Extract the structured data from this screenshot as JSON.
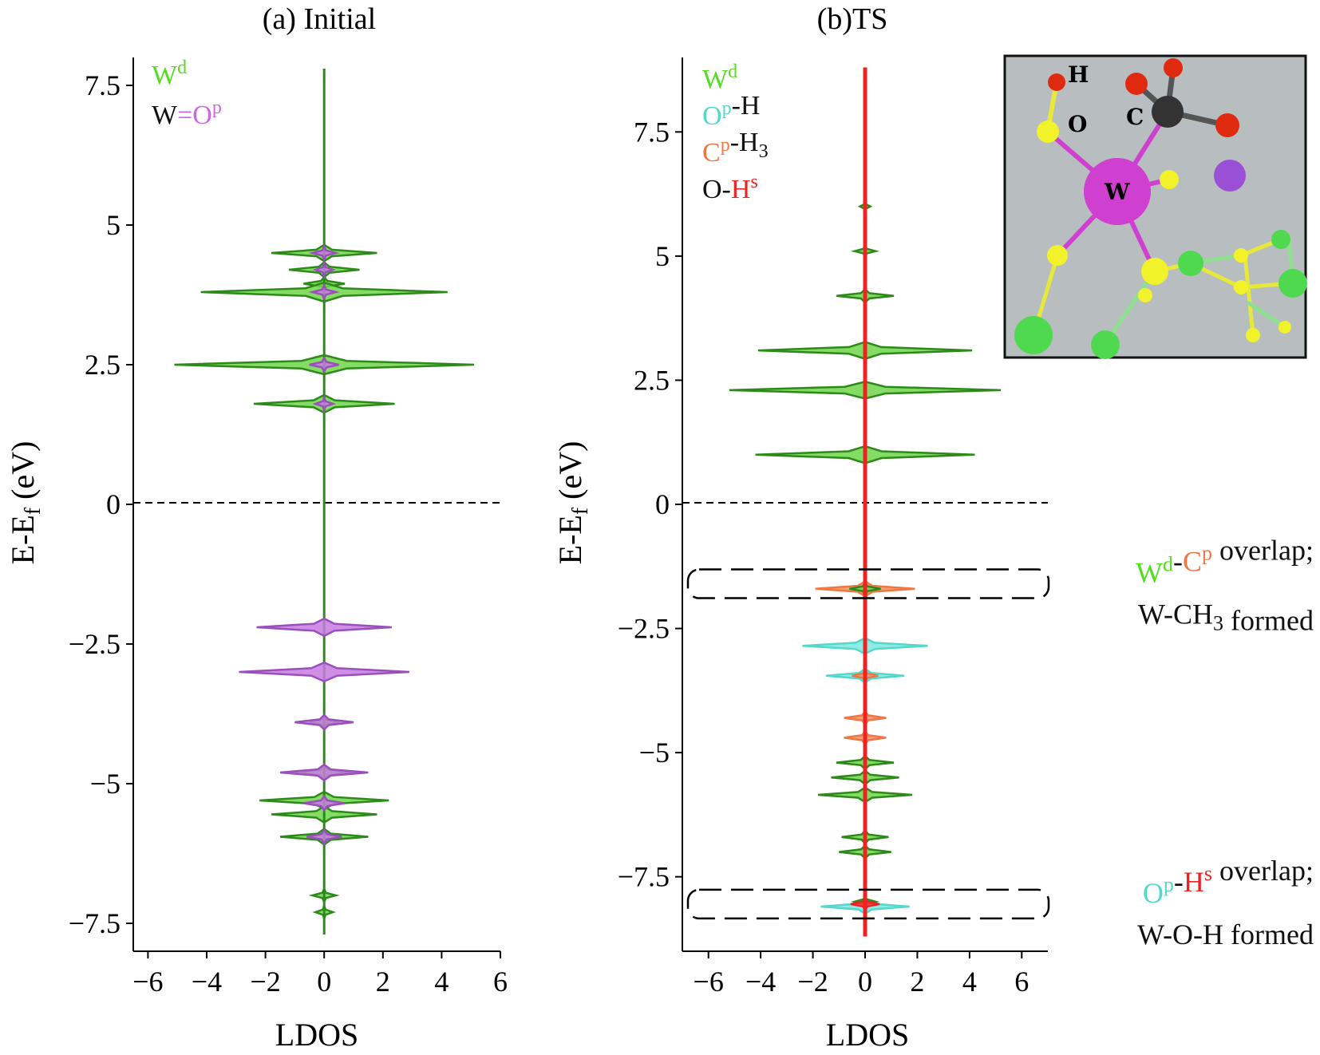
{
  "chart_data": [
    {
      "type": "area",
      "title": "(a) Initial",
      "xlabel": "LDOS",
      "ylabel": "E-E_f (eV)",
      "ylabel_main": "E-E",
      "ylabel_sub": "f",
      "ylabel_unit": " (eV)",
      "xlim": [
        -6.5,
        6
      ],
      "ylim": [
        -8,
        8
      ],
      "xticks": [
        -6,
        -4,
        -2,
        0,
        2,
        4,
        6
      ],
      "xtick_labels": [
        "−6",
        "−4",
        "−2",
        "0",
        "2",
        "4",
        "6"
      ],
      "yticks": [
        7.5,
        5,
        2.5,
        0,
        -2.5,
        -5,
        -7.5
      ],
      "ytick_labels": [
        "7.5",
        "5",
        "2.5",
        "0",
        "−2.5",
        "−5",
        "−7.5"
      ],
      "fermi_level": 0,
      "legend": [
        {
          "parts": [
            {
              "t": "W",
              "c": "#55dd22"
            },
            {
              "t": "d",
              "c": "#55dd22",
              "sup": true
            }
          ]
        },
        {
          "parts": [
            {
              "t": "W",
              "c": "#111111"
            },
            {
              "t": "=O",
              "c": "#cc66e6"
            },
            {
              "t": "p",
              "c": "#cc66e6",
              "sup": true
            }
          ]
        }
      ],
      "series": [
        {
          "name": "W^d",
          "color": "#2d8a1a",
          "fill": "#6fd64a",
          "peaks": [
            [
              4.5,
              1.8
            ],
            [
              4.2,
              1.2
            ],
            [
              3.95,
              0.7
            ],
            [
              3.8,
              4.2
            ],
            [
              2.5,
              5.1
            ],
            [
              1.8,
              2.4
            ],
            [
              -5.3,
              2.2
            ],
            [
              -5.55,
              1.8
            ],
            [
              -5.95,
              1.5
            ],
            [
              -4.8,
              1.0
            ],
            [
              -3.9,
              0.5
            ],
            [
              -7.0,
              0.4
            ],
            [
              -7.3,
              0.3
            ]
          ]
        },
        {
          "name": "W=O^p",
          "color": "#9b4fbd",
          "fill": "#c77be0",
          "peaks": [
            [
              -2.2,
              2.3
            ],
            [
              -3.0,
              2.9
            ],
            [
              -3.9,
              1.0
            ],
            [
              -4.8,
              1.5
            ],
            [
              -5.35,
              0.7
            ],
            [
              -5.95,
              0.6
            ],
            [
              4.5,
              0.4
            ],
            [
              4.2,
              0.3
            ],
            [
              3.8,
              0.4
            ],
            [
              2.5,
              0.5
            ],
            [
              1.8,
              0.3
            ]
          ]
        }
      ]
    },
    {
      "type": "area",
      "title": "(b)TS",
      "xlabel": "LDOS",
      "ylabel": "E-E_f (eV)",
      "ylabel_main": "E-E",
      "ylabel_sub": "f",
      "ylabel_unit": " (eV)",
      "xlim": [
        -7,
        7
      ],
      "ylim": [
        -9,
        9
      ],
      "xticks": [
        -6,
        -4,
        -2,
        0,
        2,
        4,
        6
      ],
      "xtick_labels": [
        "−6",
        "−4",
        "−2",
        "0",
        "2",
        "4",
        "6"
      ],
      "yticks": [
        7.5,
        5,
        2.5,
        0,
        -2.5,
        -5,
        -7.5
      ],
      "ytick_labels": [
        "7.5",
        "5",
        "2.5",
        "0",
        "−2.5",
        "−5",
        "−7.5"
      ],
      "fermi_level": 0,
      "legend": [
        {
          "parts": [
            {
              "t": "W",
              "c": "#55dd22"
            },
            {
              "t": "d",
              "c": "#55dd22",
              "sup": true
            }
          ]
        },
        {
          "parts": [
            {
              "t": "O",
              "c": "#55d8cc"
            },
            {
              "t": "p",
              "c": "#55d8cc",
              "sup": true
            },
            {
              "t": "-H",
              "c": "#111111"
            }
          ]
        },
        {
          "parts": [
            {
              "t": "C",
              "c": "#ee7744"
            },
            {
              "t": "p",
              "c": "#ee7744",
              "sup": true
            },
            {
              "t": "-H",
              "c": "#111111"
            },
            {
              "t": "3",
              "c": "#111111",
              "sub": true
            }
          ]
        },
        {
          "parts": [
            {
              "t": "O-",
              "c": "#111111"
            },
            {
              "t": "H",
              "c": "#ee2222"
            },
            {
              "t": "s",
              "c": "#ee2222",
              "sup": true
            }
          ]
        }
      ],
      "series": [
        {
          "name": "O^p-H",
          "color": "#55d8cc",
          "fill": "#7ee8e0",
          "peaks": [
            [
              -2.85,
              2.4
            ],
            [
              -3.45,
              1.5
            ],
            [
              -8.1,
              1.7
            ]
          ]
        },
        {
          "name": "C^p-H_3",
          "color": "#ee7744",
          "fill": "#f09060",
          "peaks": [
            [
              -1.7,
              1.9
            ],
            [
              -4.3,
              0.8
            ],
            [
              -4.7,
              0.8
            ],
            [
              -3.45,
              0.5
            ]
          ]
        },
        {
          "name": "W^d",
          "color": "#2d8a1a",
          "fill": "#6fd64a",
          "peaks": [
            [
              5.1,
              0.4
            ],
            [
              4.2,
              1.1
            ],
            [
              3.1,
              4.1
            ],
            [
              2.3,
              5.2
            ],
            [
              1.0,
              4.2
            ],
            [
              -1.7,
              0.6
            ],
            [
              -5.2,
              1.1
            ],
            [
              -5.5,
              1.3
            ],
            [
              -5.85,
              1.8
            ],
            [
              -6.7,
              0.9
            ],
            [
              -7.0,
              1.0
            ],
            [
              -8.0,
              0.4
            ],
            [
              6.0,
              0.2
            ]
          ]
        },
        {
          "name": "O-H^s",
          "color": "#ee2222",
          "fill": "#ff3333",
          "peaks": [
            [
              -8.05,
              0.55
            ]
          ]
        }
      ],
      "annotations": [
        {
          "y": -1.6,
          "line1": [
            {
              "t": "W",
              "c": "#55dd22"
            },
            {
              "t": "d",
              "c": "#55dd22",
              "sup": true
            },
            {
              "t": "-",
              "c": "#111111"
            },
            {
              "t": "C",
              "c": "#ee7744"
            },
            {
              "t": "p",
              "c": "#ee7744",
              "sup": true
            },
            {
              "t": " overlap;",
              "c": "#111111"
            }
          ],
          "line2": [
            {
              "t": "W-CH",
              "c": "#111111"
            },
            {
              "t": "3",
              "c": "#111111",
              "sub": true
            },
            {
              "t": " formed",
              "c": "#111111"
            }
          ]
        },
        {
          "y": -8.05,
          "line1": [
            {
              "t": "O",
              "c": "#55d8cc"
            },
            {
              "t": "p",
              "c": "#55d8cc",
              "sup": true
            },
            {
              "t": "-",
              "c": "#111111"
            },
            {
              "t": "H",
              "c": "#ee2222"
            },
            {
              "t": "s",
              "c": "#ee2222",
              "sup": true
            },
            {
              "t": " overlap;",
              "c": "#111111"
            }
          ],
          "line2": [
            {
              "t": "W-O-H formed",
              "c": "#111111"
            }
          ]
        }
      ]
    }
  ],
  "inset": {
    "atom_labels": [
      "H",
      "O",
      "C",
      "W"
    ]
  }
}
